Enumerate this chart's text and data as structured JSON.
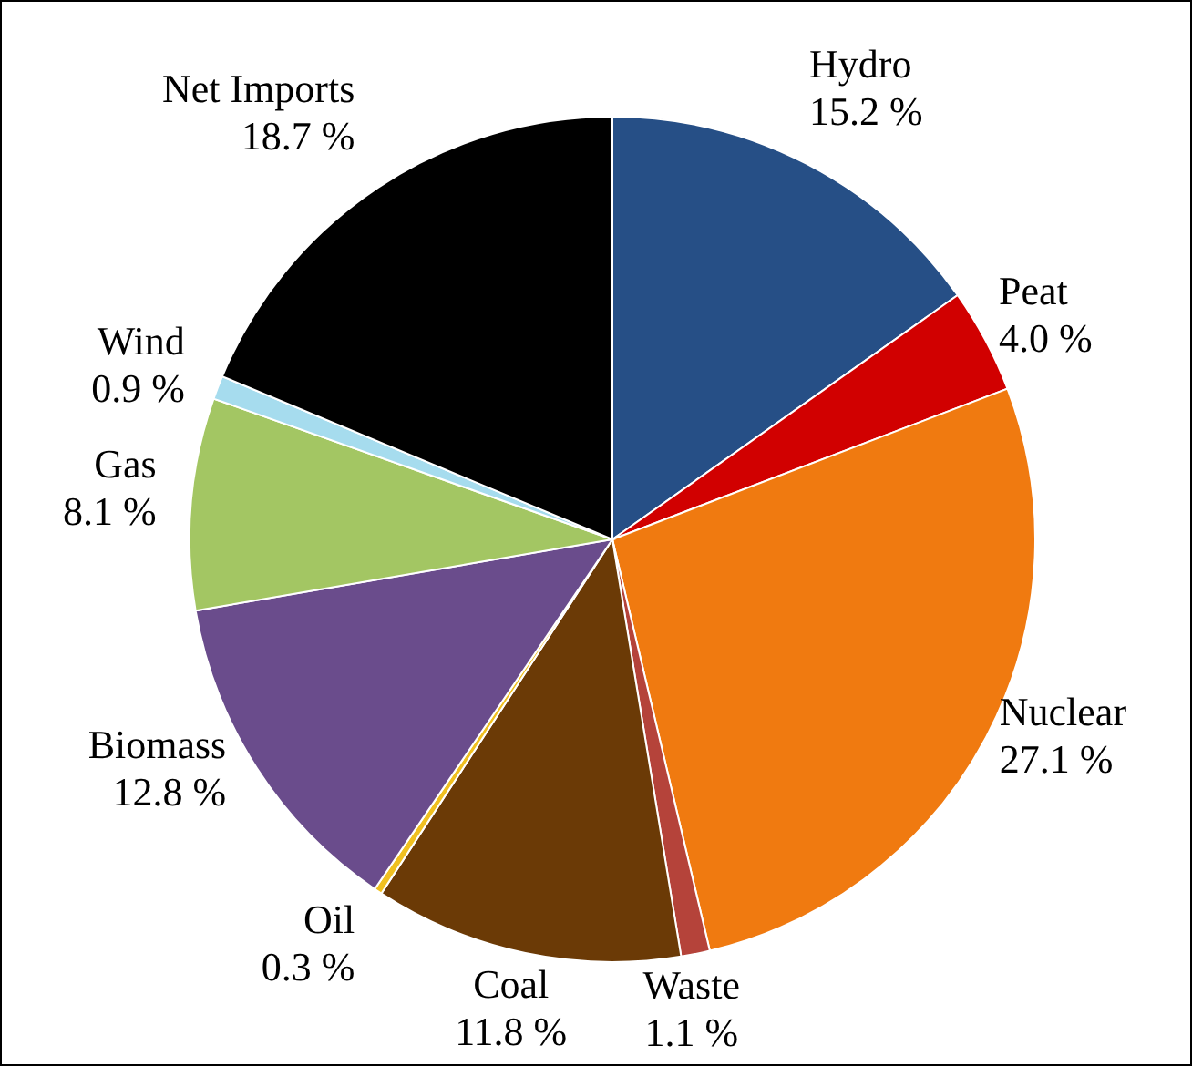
{
  "chart_data": {
    "type": "pie",
    "categories": [
      "Hydro",
      "Peat",
      "Nuclear",
      "Waste",
      "Coal",
      "Oil",
      "Biomass",
      "Gas",
      "Wind",
      "Net Imports"
    ],
    "values": [
      15.2,
      4.0,
      27.1,
      1.1,
      11.8,
      0.3,
      12.8,
      8.1,
      0.9,
      18.7
    ],
    "value_labels": [
      "15.2 %",
      "4.0 %",
      "27.1 %",
      "1.1 %",
      "11.8 %",
      "0.3 %",
      "12.8 %",
      "8.1 %",
      "0.9 %",
      "18.7 %"
    ],
    "colors": [
      "#264f86",
      "#d10000",
      "#f07a10",
      "#b5433a",
      "#6b3a06",
      "#f0c020",
      "#6a4c8c",
      "#a3c663",
      "#a6dcee",
      "#000000"
    ],
    "legend": false
  }
}
